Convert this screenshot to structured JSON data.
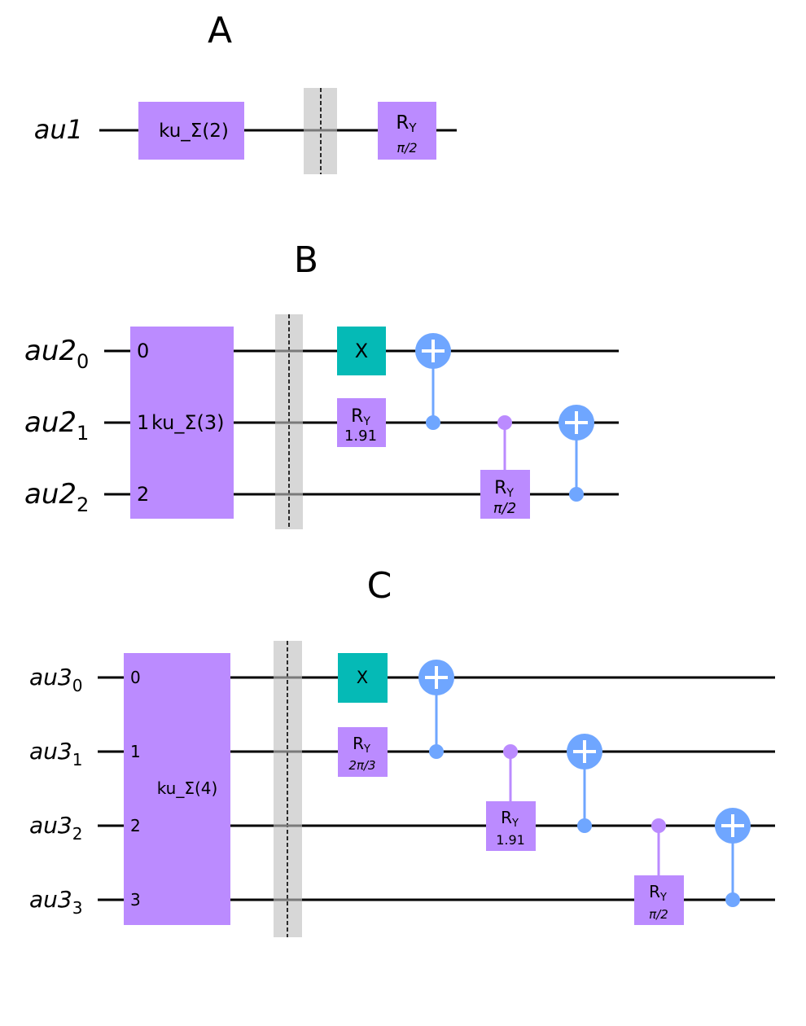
{
  "panels": {
    "a": {
      "title": "A",
      "reg_q0_base": "au1",
      "reg_q0_sub": "",
      "box_label": "ku_Σ(2)",
      "ry_label": "R",
      "ry_sub": "Y",
      "ry_param": "π/2"
    },
    "b": {
      "title": "B",
      "regs": [
        {
          "base": "au2",
          "sub": "0"
        },
        {
          "base": "au2",
          "sub": "1"
        },
        {
          "base": "au2",
          "sub": "2"
        }
      ],
      "box_label": "ku_Σ(3)",
      "box_ports": [
        "0",
        "1",
        "2"
      ],
      "x_label": "X",
      "ry1_label": "R",
      "ry1_sub": "Y",
      "ry1_param": "1.91",
      "ry2_label": "R",
      "ry2_sub": "Y",
      "ry2_param": "π/2"
    },
    "c": {
      "title": "C",
      "regs": [
        {
          "base": "au3",
          "sub": "0"
        },
        {
          "base": "au3",
          "sub": "1"
        },
        {
          "base": "au3",
          "sub": "2"
        },
        {
          "base": "au3",
          "sub": "3"
        }
      ],
      "box_label": "ku_Σ(4)",
      "box_ports": [
        "0",
        "1",
        "2",
        "3"
      ],
      "x_label": "X",
      "ry1_label": "R",
      "ry1_sub": "Y",
      "ry1_param": "2π/3",
      "ry2_label": "R",
      "ry2_sub": "Y",
      "ry2_param": "1.91",
      "ry3_label": "R",
      "ry3_sub": "Y",
      "ry3_param": "π/2"
    }
  },
  "colors": {
    "custom_gate": "#bb8bff",
    "x_gate": "#05bab6",
    "cnot": "#6fa6ff",
    "barrier": "#d7d7d7"
  }
}
